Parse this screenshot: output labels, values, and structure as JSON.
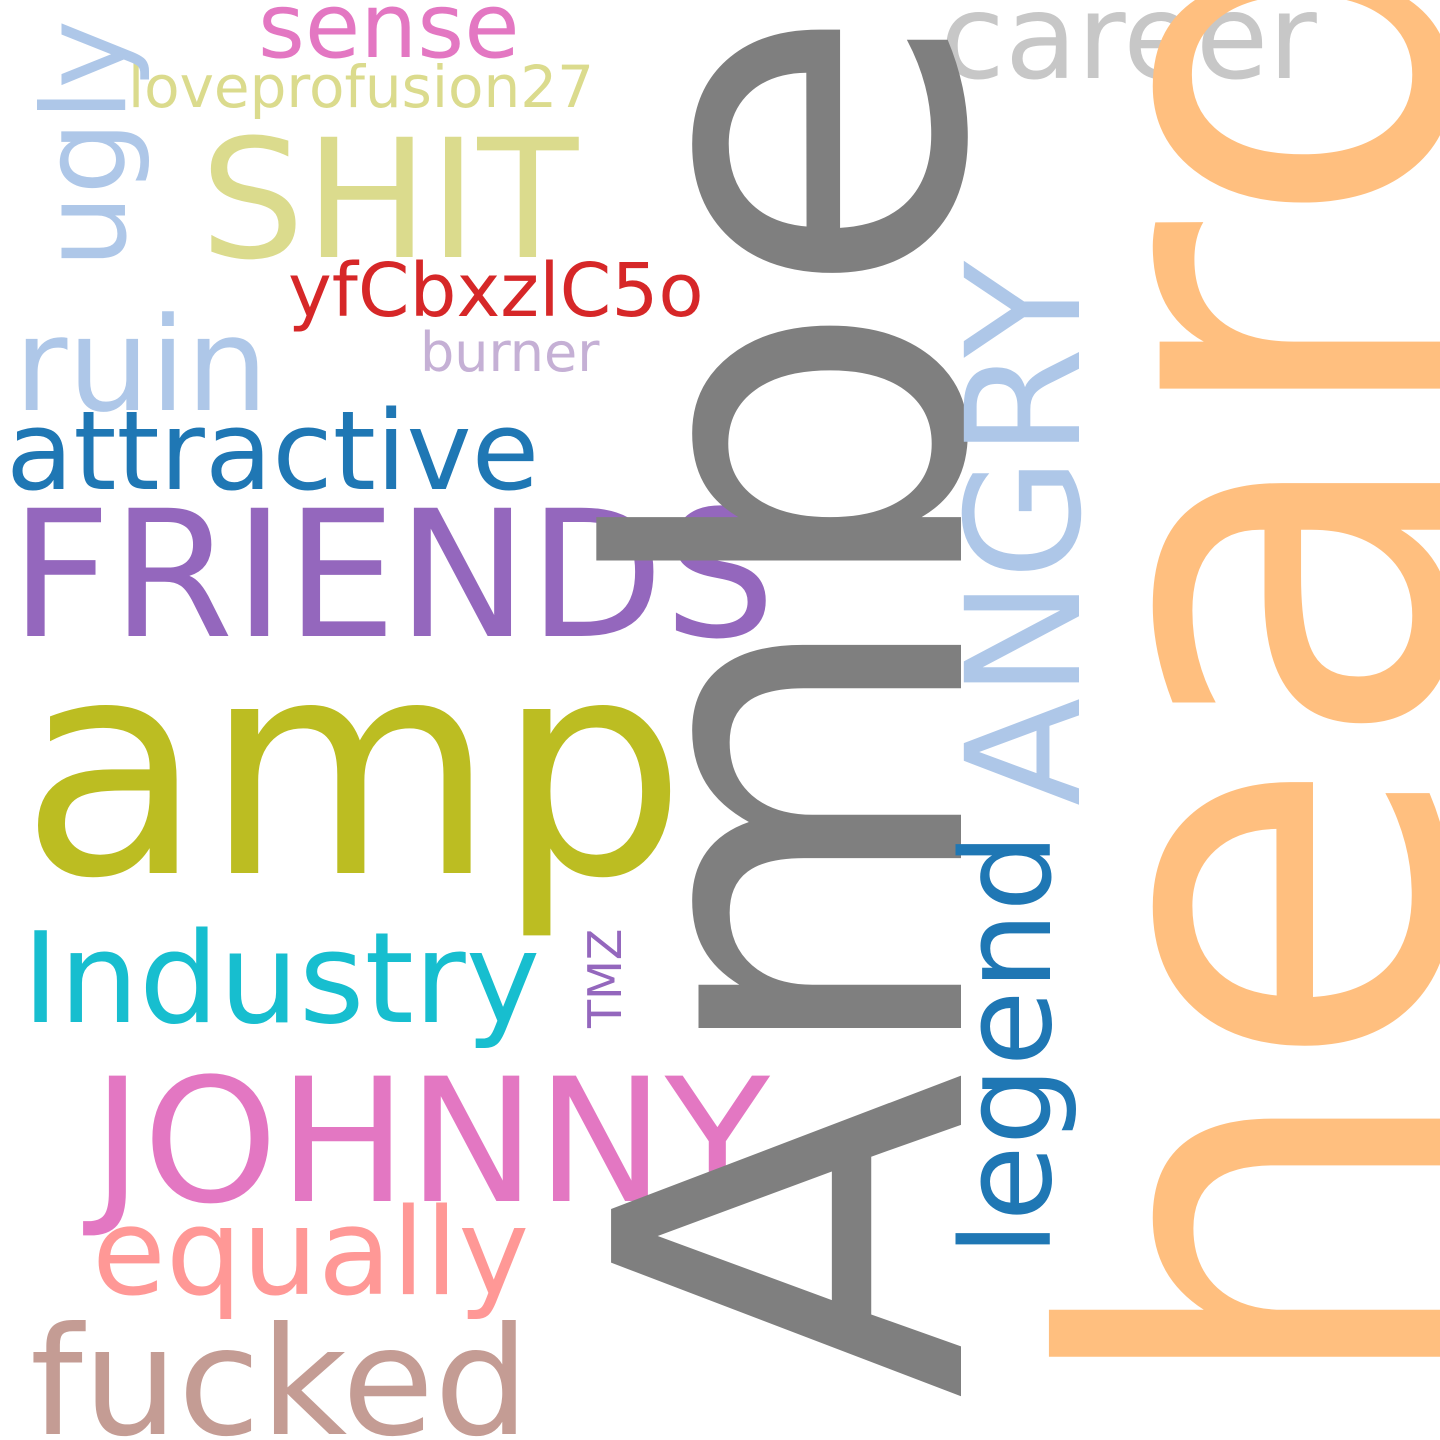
{
  "words": {
    "sense": {
      "text": "sense",
      "color": "#e377c2"
    },
    "career": {
      "text": "career",
      "color": "#c7c7c7"
    },
    "lovepro": {
      "text": "loveprofusion27",
      "color": "#dbdb8d"
    },
    "shit": {
      "text": "SHIT",
      "color": "#dbdb8d"
    },
    "yfc": {
      "text": "yfCbxzlC5o",
      "color": "#d62728"
    },
    "ruin": {
      "text": "ruin",
      "color": "#aec7e8"
    },
    "burner": {
      "text": "burner",
      "color": "#c5b0d5"
    },
    "attractive": {
      "text": "attractive",
      "color": "#1f77b4"
    },
    "friends": {
      "text": "FRIENDS",
      "color": "#9467bd"
    },
    "amp": {
      "text": "amp",
      "color": "#bcbd22"
    },
    "industry": {
      "text": "Industry",
      "color": "#17becf"
    },
    "johnny": {
      "text": "JOHNNY",
      "color": "#e377c2"
    },
    "equally": {
      "text": "equally",
      "color": "#ff9896"
    },
    "fucked": {
      "text": "fucked",
      "color": "#c49c94"
    },
    "ugly": {
      "text": "ugly",
      "color": "#aec7e8"
    },
    "tmz": {
      "text": "TMZ",
      "color": "#9467bd"
    },
    "amber": {
      "text": "Amber",
      "color": "#7f7f7f"
    },
    "angry": {
      "text": "ANGRY",
      "color": "#aec7e8"
    },
    "legend": {
      "text": "legend",
      "color": "#1f77b4"
    },
    "heard": {
      "text": "heard",
      "color": "#ffbf7f"
    }
  }
}
